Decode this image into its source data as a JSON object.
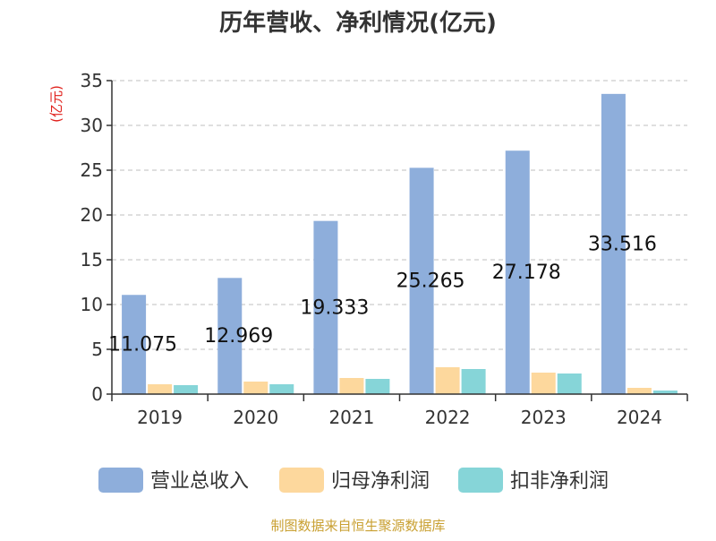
{
  "chart_data": {
    "type": "bar",
    "title": "历年营收、净利情况(亿元)",
    "ylabel": "(亿元)",
    "xlabel": "",
    "ylim": [
      0,
      35
    ],
    "yticks": [
      0,
      5,
      10,
      15,
      20,
      25,
      30,
      35
    ],
    "grid": true,
    "legend_position": "bottom",
    "categories": [
      "2019",
      "2020",
      "2021",
      "2022",
      "2023",
      "2024"
    ],
    "series": [
      {
        "name": "营业总收入",
        "color": "#8eaedb",
        "values": [
          11.075,
          12.969,
          19.333,
          25.265,
          27.178,
          33.516
        ],
        "labels": [
          "11.075",
          "12.969",
          "19.333",
          "25.265",
          "27.178",
          "33.516"
        ]
      },
      {
        "name": "归母净利润",
        "color": "#fdd89d",
        "values": [
          1.1,
          1.4,
          1.8,
          3.0,
          2.4,
          0.7
        ]
      },
      {
        "name": "扣非净利润",
        "color": "#86d5d8",
        "values": [
          1.0,
          1.1,
          1.7,
          2.8,
          2.3,
          0.4
        ]
      }
    ]
  },
  "source": "制图数据来自恒生聚源数据库",
  "colors": {
    "title": "#333333",
    "ylabel": "#e0201b",
    "source": "#c9a032",
    "axis": "#333333",
    "grid": "#cccccc"
  }
}
